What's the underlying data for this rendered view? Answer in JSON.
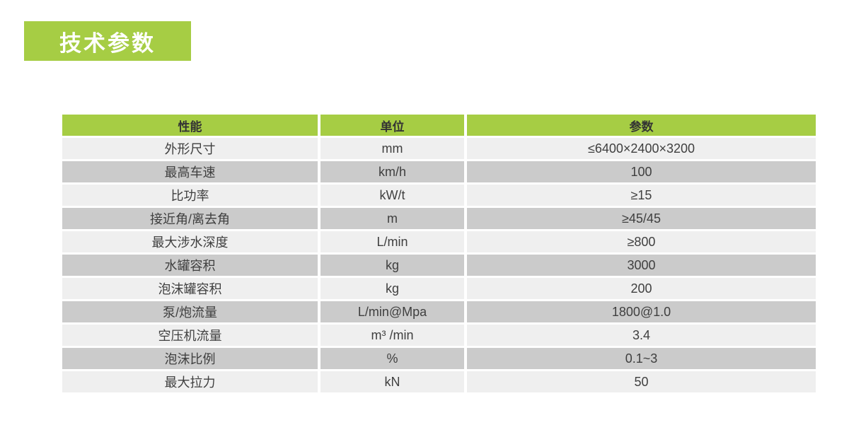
{
  "page": {
    "title": "技术参数"
  },
  "table": {
    "headers": [
      "性能",
      "单位",
      "参数"
    ],
    "rows": [
      [
        "外形尺寸",
        "mm",
        "≤6400×2400×3200"
      ],
      [
        "最高车速",
        "km/h",
        "100"
      ],
      [
        "比功率",
        "kW/t",
        "≥15"
      ],
      [
        "接近角/离去角",
        "m",
        "≥45/45"
      ],
      [
        "最大涉水深度",
        "L/min",
        "≥800"
      ],
      [
        "水罐容积",
        "kg",
        "3000"
      ],
      [
        "泡沫罐容积",
        "kg",
        "200"
      ],
      [
        "泵/炮流量",
        "L/min@Mpa",
        "1800@1.0"
      ],
      [
        "空压机流量",
        "m³ /min",
        "3.4"
      ],
      [
        "泡沫比例",
        "%",
        "0.1~3"
      ],
      [
        "最大拉力",
        "kN",
        "50"
      ]
    ]
  },
  "colors": {
    "accent_green": "#a6cd44",
    "row_light": "#efefef",
    "row_dark": "#cbcbcb",
    "text": "#3f3f3f",
    "header_text": "#333333"
  }
}
